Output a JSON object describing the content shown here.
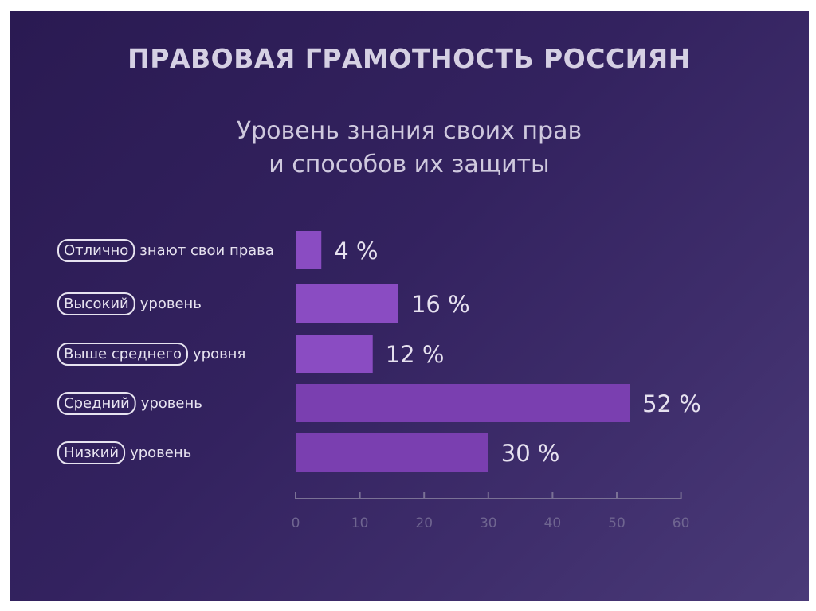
{
  "chart_data": {
    "type": "bar",
    "orientation": "horizontal",
    "title": "ПРАВОВАЯ ГРАМОТНОСТЬ РОССИЯН",
    "subtitle": [
      "Уровень знания своих прав",
      "и способов их защиты"
    ],
    "categories": [
      {
        "highlight": "Отлично",
        "rest": "знают свои права"
      },
      {
        "highlight": "Высокий",
        "rest": "уровень"
      },
      {
        "highlight": "Выше среднего",
        "rest": "уровня"
      },
      {
        "highlight": "Средний",
        "rest": "уровень"
      },
      {
        "highlight": "Низкий",
        "rest": "уровень"
      }
    ],
    "values": [
      4,
      16,
      12,
      52,
      30
    ],
    "value_labels": [
      "4 %",
      "16 %",
      "12 %",
      "52 %",
      "30 %"
    ],
    "xlim": [
      0,
      60
    ],
    "xticks": [
      0,
      10,
      20,
      30,
      40,
      50,
      60
    ],
    "grid": false,
    "colors": {
      "bar": "#8a4cc2",
      "bar_alt": "#7a3fb0",
      "axis": "#7a7195",
      "tick_label": "#6f6590"
    }
  }
}
